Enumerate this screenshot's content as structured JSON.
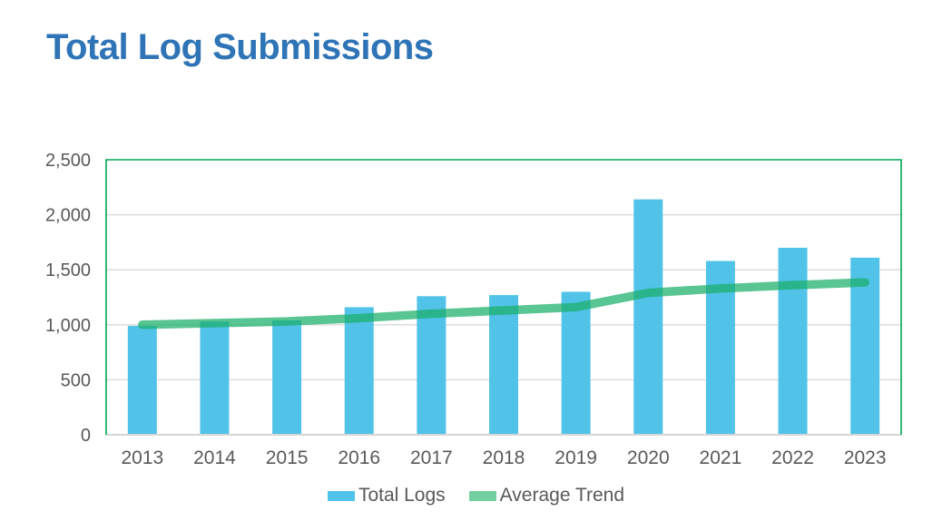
{
  "title": {
    "text": "Total Log Submissions",
    "color": "#2E74B6"
  },
  "chart_data": {
    "type": "bar",
    "title": "Total Log Submissions",
    "categories": [
      "2013",
      "2014",
      "2015",
      "2016",
      "2017",
      "2018",
      "2019",
      "2020",
      "2021",
      "2022",
      "2023"
    ],
    "series": [
      {
        "name": "Total Logs",
        "kind": "bar",
        "color": "#52C3E8",
        "values": [
          990,
          1030,
          1040,
          1160,
          1260,
          1270,
          1300,
          2140,
          1580,
          1700,
          1610
        ]
      },
      {
        "name": "Average Trend",
        "kind": "line",
        "color": "#19AF68",
        "opacity": 0.72,
        "values": [
          1000,
          1015,
          1030,
          1060,
          1100,
          1130,
          1160,
          1290,
          1330,
          1360,
          1385
        ]
      }
    ],
    "xlabel": "",
    "ylabel": "",
    "ylim": [
      0,
      2500
    ],
    "ytick_step": 500,
    "ytick_labels": [
      "0",
      "500",
      "1,000",
      "1,500",
      "2,000",
      "2,500"
    ],
    "grid": true,
    "legend_position": "bottom",
    "plot_border_color": "#00A651",
    "gridline_color": "#D9D9D9",
    "baseline_color": "#D6D6D6",
    "axis_text_color": "#595959"
  },
  "legend": {
    "items": [
      {
        "label": "Total Logs",
        "swatch_color": "#52C3E8"
      },
      {
        "label": "Average Trend",
        "swatch_color": "#74CFA0"
      }
    ]
  }
}
